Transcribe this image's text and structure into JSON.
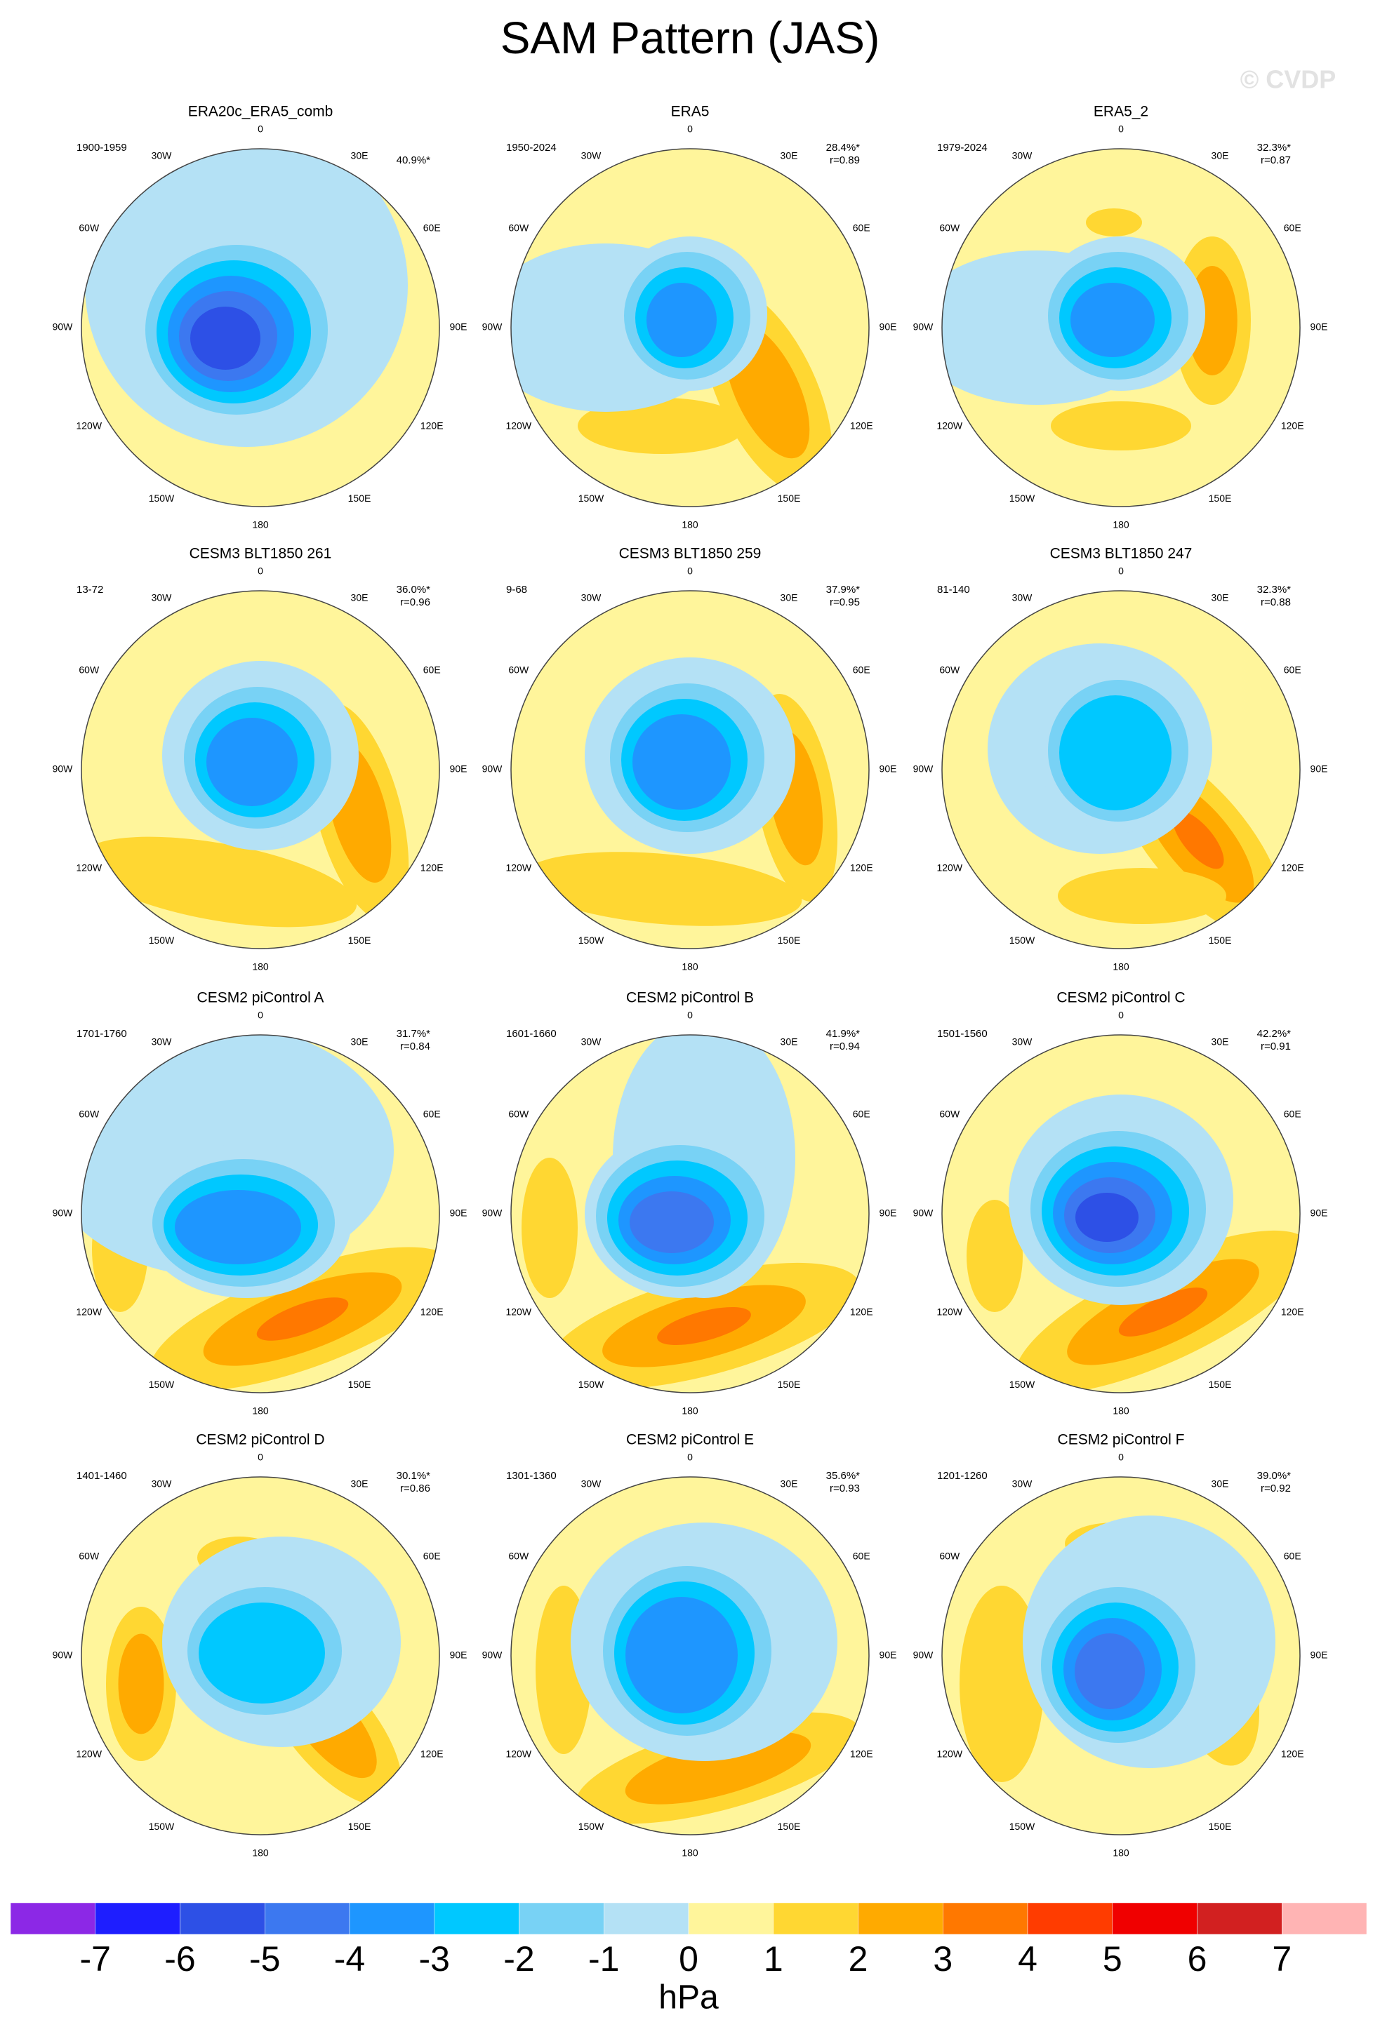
{
  "title": "SAM Pattern (JAS)",
  "watermark": "© CVDP",
  "lon_labels": [
    "0",
    "30E",
    "60E",
    "90E",
    "120E",
    "150E",
    "180",
    "150W",
    "120W",
    "90W",
    "60W",
    "30W"
  ],
  "panels": [
    {
      "title": "ERA20c_ERA5_comb",
      "period": "1900-1959",
      "pct": "40.9%*"
    },
    {
      "title": "ERA5",
      "period": "1950-2024",
      "pct": "28.4%*",
      "r": "r=0.89"
    },
    {
      "title": "ERA5_2",
      "period": "1979-2024",
      "pct": "32.3%*",
      "r": "r=0.87"
    },
    {
      "title": "CESM3 BLT1850 261",
      "period": "13-72",
      "pct": "36.0%*",
      "r": "r=0.96"
    },
    {
      "title": "CESM3 BLT1850 259",
      "period": "9-68",
      "pct": "37.9%*",
      "r": "r=0.95"
    },
    {
      "title": "CESM3 BLT1850 247",
      "period": "81-140",
      "pct": "32.3%*",
      "r": "r=0.88"
    },
    {
      "title": "CESM2 piControl A",
      "period": "1701-1760",
      "pct": "31.7%*",
      "r": "r=0.84"
    },
    {
      "title": "CESM2 piControl B",
      "period": "1601-1660",
      "pct": "41.9%*",
      "r": "r=0.94"
    },
    {
      "title": "CESM2 piControl C",
      "period": "1501-1560",
      "pct": "42.2%*",
      "r": "r=0.91"
    },
    {
      "title": "CESM2 piControl D",
      "period": "1401-1460",
      "pct": "30.1%*",
      "r": "r=0.86"
    },
    {
      "title": "CESM2 piControl E",
      "period": "1301-1360",
      "pct": "35.6%*",
      "r": "r=0.93"
    },
    {
      "title": "CESM2 piControl F",
      "period": "1201-1260",
      "pct": "39.0%*",
      "r": "r=0.92"
    }
  ],
  "colorbar": {
    "colors": [
      "#8c28e6",
      "#1e1eff",
      "#2d50e6",
      "#3c78f0",
      "#1e96ff",
      "#00c8ff",
      "#78d2f5",
      "#b4e1f5",
      "#fff59b",
      "#ffd732",
      "#ffaa00",
      "#ff7800",
      "#ff3c00",
      "#f00000",
      "#d22020",
      "#ffb4b4"
    ],
    "ticks": [
      -7,
      -6,
      -5,
      -4,
      -3,
      -2,
      -1,
      0,
      1,
      2,
      3,
      4,
      5,
      6,
      7
    ],
    "unit": "hPa"
  }
}
